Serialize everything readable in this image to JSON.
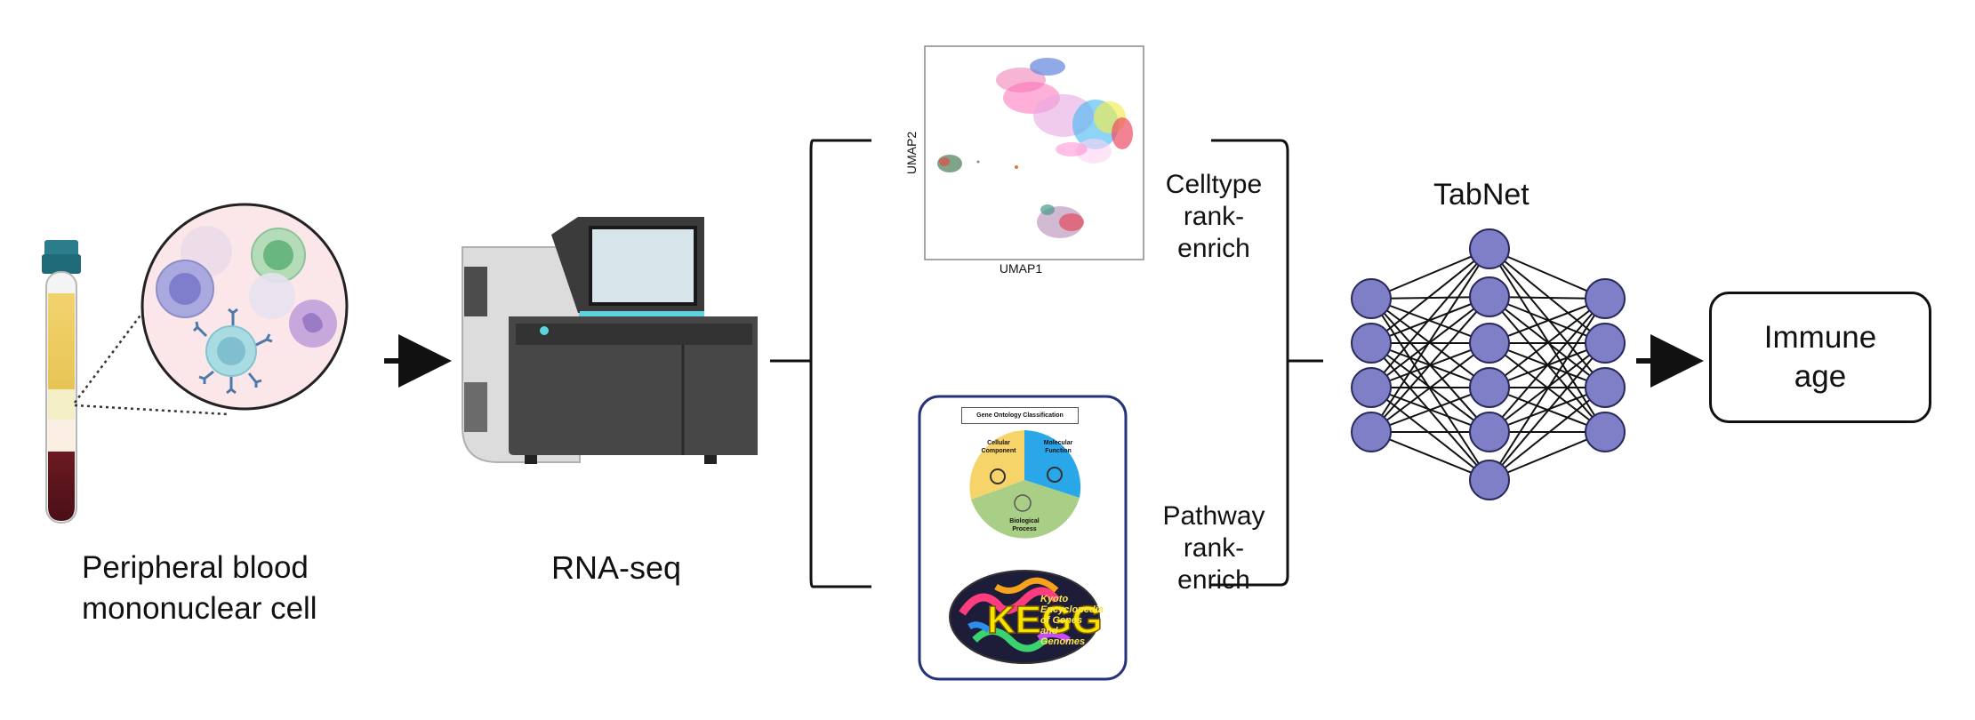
{
  "diagram": {
    "pbmc_label_line1": "Peripheral blood",
    "pbmc_label_line2": "mononuclear cell",
    "rnaseq_label": "RNA-seq",
    "umap_xlabel": "UMAP1",
    "umap_ylabel": "UMAP2",
    "celltype_line1": "Celltype",
    "celltype_line2": "rank-enrich",
    "pathway_line1": "Pathway",
    "pathway_line2": "rank-enrich",
    "tabnet_label": "TabNet",
    "output_line1": "Immune",
    "output_line2": "age",
    "go_title": "Gene Ontology Classification",
    "go_cc": "Cellular Component",
    "go_mf": "Molecular Function",
    "go_bp": "Biological Process",
    "kegg_text": "Kyoto Encyclopedia of Genes and Genomes",
    "colors": {
      "node_fill": "#7f7fc8",
      "node_stroke": "#2a2a5a",
      "go_yellow": "#f7d46a",
      "go_blue": "#2aa7e8",
      "go_green": "#a9cf86",
      "box_border": "#26327a"
    }
  }
}
